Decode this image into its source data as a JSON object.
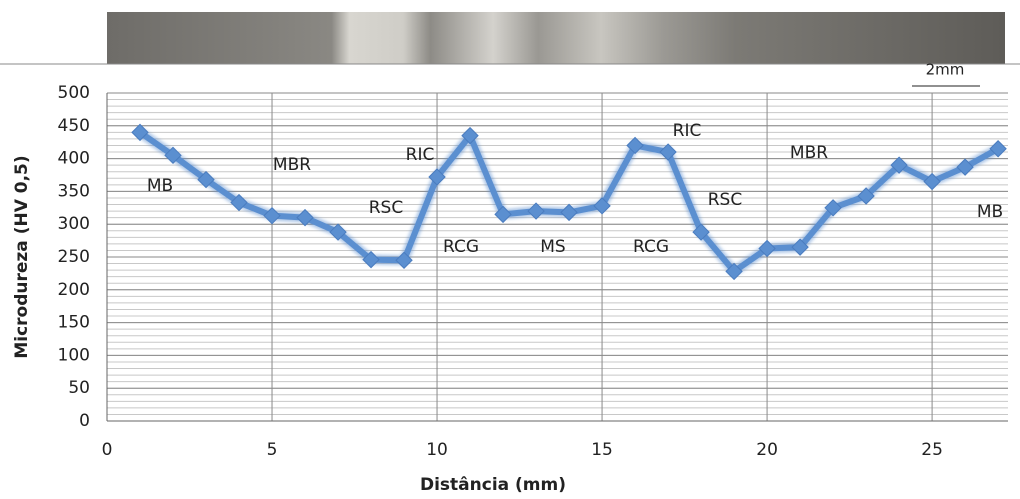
{
  "chart_data": {
    "type": "line",
    "x_label": "Distância (mm)",
    "y_label": "Microdureza (HV 0,5)",
    "x": [
      1,
      2,
      3,
      4,
      5,
      6,
      7,
      8,
      9,
      10,
      11,
      12,
      13,
      14,
      15,
      16,
      17,
      18,
      19,
      20,
      21,
      22,
      23,
      24,
      25,
      26,
      27
    ],
    "series": [
      {
        "color": "#5b8fd0",
        "values": [
          440,
          405,
          368,
          333,
          313,
          310,
          288,
          246,
          245,
          372,
          435,
          315,
          320,
          318,
          328,
          420,
          410,
          288,
          228,
          263,
          265,
          325,
          343,
          390,
          365,
          387,
          415
        ]
      }
    ],
    "xlim": [
      0,
      27.3
    ],
    "xticks": [
      0,
      5,
      10,
      15,
      20,
      25
    ],
    "ylim": [
      0,
      500
    ],
    "yticks": [
      0,
      50,
      100,
      150,
      200,
      250,
      300,
      350,
      400,
      450,
      500
    ],
    "y_minor_step": 10,
    "grid": true,
    "annotations": [
      "MB",
      "MBR",
      "RSC",
      "RIC",
      "RCG",
      "MS",
      "RCG",
      "RIC",
      "RSC",
      "MBR",
      "MB"
    ],
    "scale_bar": "2mm"
  }
}
